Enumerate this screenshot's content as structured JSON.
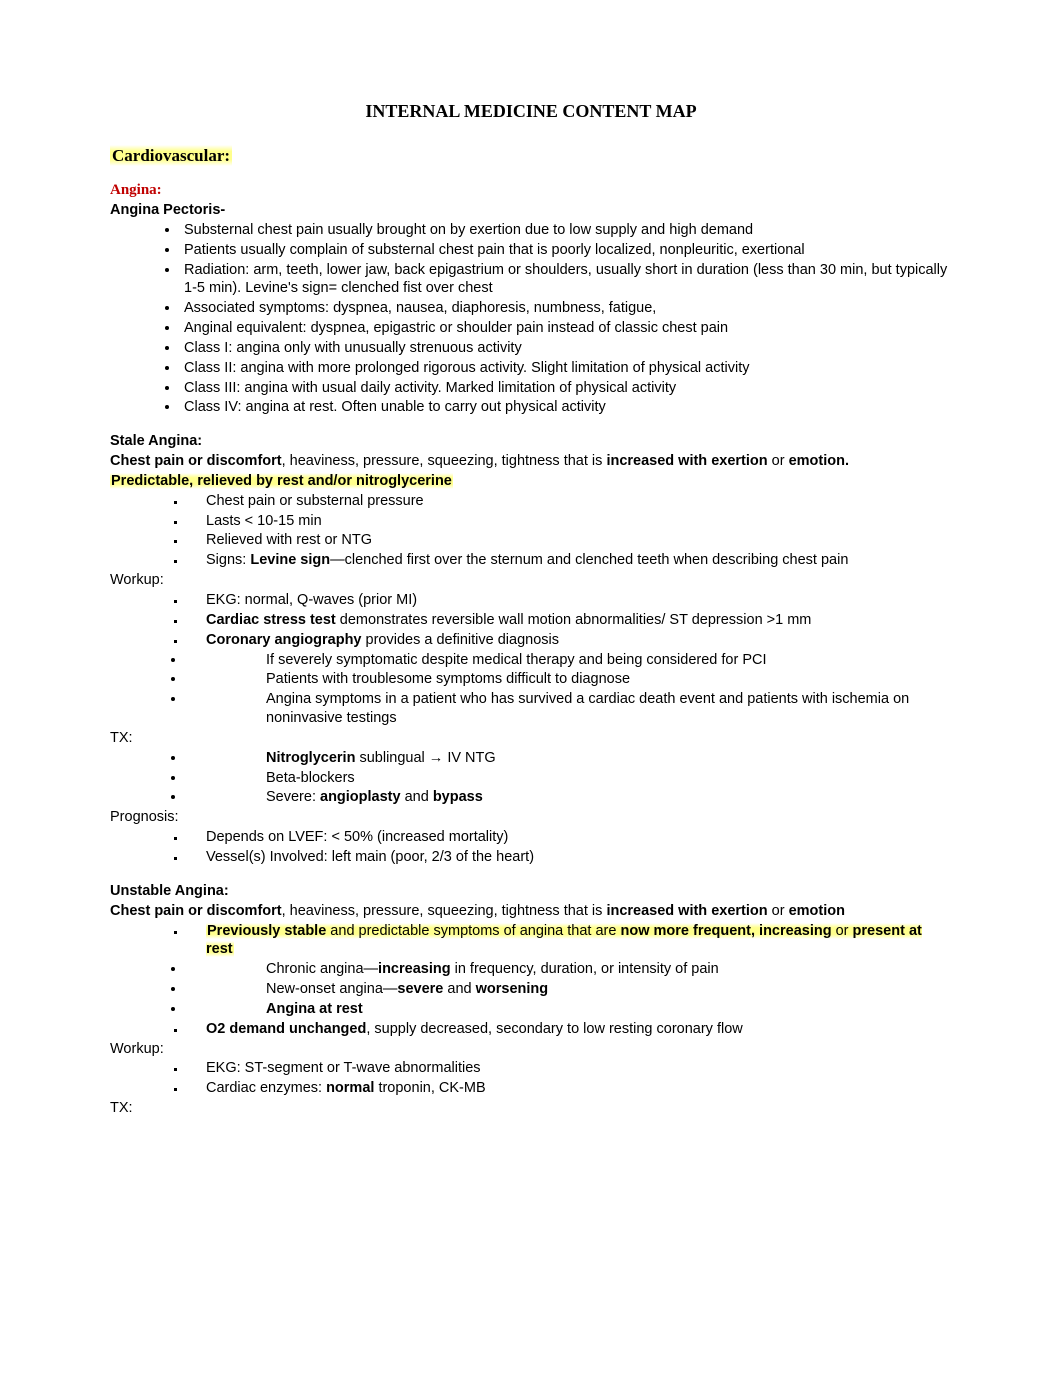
{
  "title": "INTERNAL MEDICINE CONTENT MAP",
  "section": "Cardiovascular:",
  "angina": {
    "hdr": "Angina:",
    "sub": "Angina Pectoris-",
    "b1": "Substernal chest pain usually brought on by exertion due to low supply and high demand",
    "b2": "Patients usually complain of substernal chest pain that is poorly localized, nonpleuritic, exertional",
    "b3": "Radiation: arm, teeth, lower jaw, back epigastrium or shoulders, usually short in duration (less than 30 min, but typically 1-5 min). Levine's sign= clenched fist over chest",
    "b4": "Associated symptoms: dyspnea, nausea, diaphoresis, numbness, fatigue,",
    "b5": "Anginal equivalent: dyspnea, epigastric or shoulder pain instead of classic chest pain",
    "b6": "Class I: angina only with unusually strenuous activity",
    "b7": "Class II: angina with more prolonged rigorous activity. Slight limitation of physical activity",
    "b8": "Class III: angina with usual daily activity. Marked limitation of physical activity",
    "b9": "Class IV: angina at rest. Often unable to carry out physical activity"
  },
  "stable": {
    "hdr": "Stale Angina:",
    "d1a": "Chest pain or discomfort",
    "d1b": ", heaviness, pressure, squeezing, tightness that is ",
    "d1c": "increased with exertion",
    "d1d": " or ",
    "d1e": "emotion.",
    "hl": "Predictable, relieved by rest and/or nitroglycerine",
    "s1": "Chest pain or substernal pressure",
    "s2": "Lasts < 10-15 min",
    "s3": "Relieved with rest or NTG",
    "s4a": "Signs: ",
    "s4b": "Levine sign",
    "s4c": "—clenched first over the sternum and clenched teeth when describing chest pain",
    "wu": "Workup:",
    "w1": "EKG: normal, Q-waves (prior MI)",
    "w2a": "Cardiac stress test",
    "w2b": " demonstrates reversible wall motion abnormalities/ ST depression >1 mm",
    "w3a": "Coronary angiography",
    "w3b": " provides a definitive diagnosis",
    "w4": "If severely symptomatic despite medical therapy and being considered for PCI",
    "w5": "Patients with troublesome symptoms difficult to diagnose",
    "w6": "Angina symptoms in a patient who has survived a cardiac death event and patients with ischemia on noninvasive testings",
    "tx": "TX:",
    "t1a": "Nitroglycerin",
    "t1b": " sublingual → IV NTG",
    "t2": "Beta-blockers",
    "t3a": "Severe: ",
    "t3b": "angioplasty",
    "t3c": " and ",
    "t3d": "bypass",
    "pg": "Prognosis:",
    "p1": "Depends on LVEF: < 50% (increased mortality)",
    "p2": "Vessel(s) Involved: left main (poor, 2/3 of the heart)"
  },
  "unstable": {
    "hdr": "Unstable Angina:",
    "d1a": "Chest pain or discomfort",
    "d1b": ", heaviness, pressure, squeezing, tightness that is ",
    "d1c": "increased with exertion",
    "d1d": " or ",
    "d1e": "emotion",
    "h1a": "Previously stable",
    "h1b": " and predictable symptoms of angina that are ",
    "h1c": "now more frequent, increasing",
    "h1d": " or ",
    "h1e": "present at rest",
    "u1a": "Chronic angina—",
    "u1b": "increasing",
    "u1c": " in frequency, duration, or intensity of pain",
    "u2a": "New-onset angina—",
    "u2b": "severe",
    "u2c": " and ",
    "u2d": "worsening",
    "u3": "Angina at rest",
    "o2a": "O2 demand unchanged",
    "o2b": ", supply decreased, secondary to low resting coronary flow",
    "wu": "Workup:",
    "w1": "EKG: ST-segment or T-wave abnormalities",
    "w2a": "Cardiac enzymes: ",
    "w2b": "normal",
    "w2c": " troponin, CK-MB",
    "tx": "TX:"
  }
}
